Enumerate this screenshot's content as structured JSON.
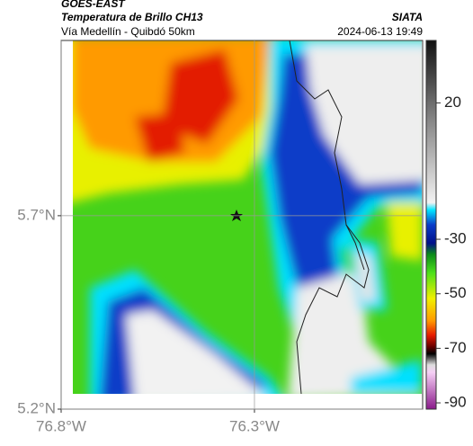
{
  "header": {
    "source": "GOES-EAST",
    "title": "Temperatura de Brillo CH13",
    "subtitle": "Vía Medellín - Quibdó 50km",
    "agency": "SIATA",
    "datetime": "2024-06-13 19:49"
  },
  "map": {
    "xlim": [
      -76.8,
      -75.865
    ],
    "ylim": [
      5.2,
      6.153
    ],
    "xticks": [
      {
        "value": -76.8,
        "label": "76.8°W"
      },
      {
        "value": -76.3,
        "label": "76.3°W"
      }
    ],
    "yticks": [
      {
        "value": 5.2,
        "label": "5.2°N"
      },
      {
        "value": 5.7,
        "label": "5.7°N"
      }
    ],
    "grid": true
  },
  "colorbar": {
    "lim": [
      -92.3,
      42.9
    ],
    "ticks": [
      20,
      -30,
      -50,
      -70,
      -90
    ]
  }
}
